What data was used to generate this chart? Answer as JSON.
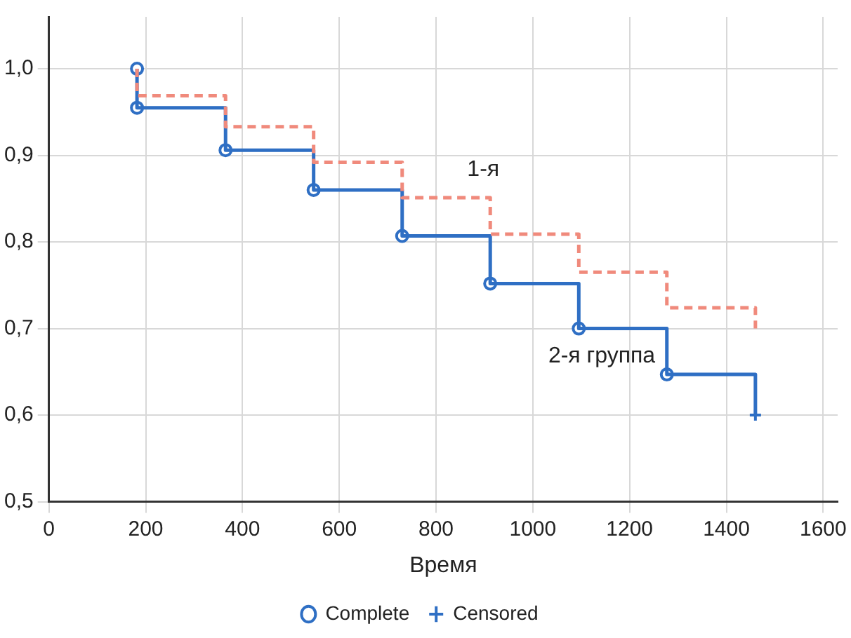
{
  "chart_data": {
    "type": "step",
    "xlabel": "Время",
    "xlim": [
      0,
      1630
    ],
    "ylim": [
      0.5,
      1.06
    ],
    "xticks": [
      0,
      200,
      400,
      600,
      800,
      1000,
      1200,
      1400,
      1600
    ],
    "yticks": [
      {
        "value": 0.5,
        "label": "0,5"
      },
      {
        "value": 0.6,
        "label": "0,6"
      },
      {
        "value": 0.7,
        "label": "0,7"
      },
      {
        "value": 0.8,
        "label": "0,8"
      },
      {
        "value": 0.9,
        "label": "0,9"
      },
      {
        "value": 1.0,
        "label": "1,0"
      }
    ],
    "grid": true,
    "legend": "bottom",
    "series": [
      {
        "name": "1-я",
        "color": "#f08a7c",
        "line_style": "dashed",
        "marker": "none",
        "x": [
          182,
          182,
          365,
          547,
          730,
          912,
          1095,
          1277,
          1460
        ],
        "values": [
          1.0,
          0.969,
          0.933,
          0.892,
          0.851,
          0.809,
          0.765,
          0.724,
          0.7
        ]
      },
      {
        "name": "2-я группа",
        "color": "#2f6fc4",
        "line_style": "solid",
        "marker": "none",
        "x": [
          182,
          182,
          365,
          547,
          730,
          912,
          1095,
          1277,
          1460
        ],
        "values": [
          1.0,
          0.955,
          0.906,
          0.86,
          0.807,
          0.752,
          0.7,
          0.647,
          0.6
        ]
      },
      {
        "name": "Complete",
        "type": "scatter",
        "color": "#2f6fc4",
        "marker": "circle",
        "x": [
          182,
          182,
          365,
          547,
          730,
          912,
          1095,
          1277
        ],
        "values": [
          1.0,
          0.955,
          0.906,
          0.86,
          0.807,
          0.752,
          0.7,
          0.647
        ]
      },
      {
        "name": "Censored",
        "type": "scatter",
        "color": "#2f6fc4",
        "marker": "cross",
        "x": [
          1460
        ],
        "values": [
          0.6
        ]
      }
    ]
  }
}
